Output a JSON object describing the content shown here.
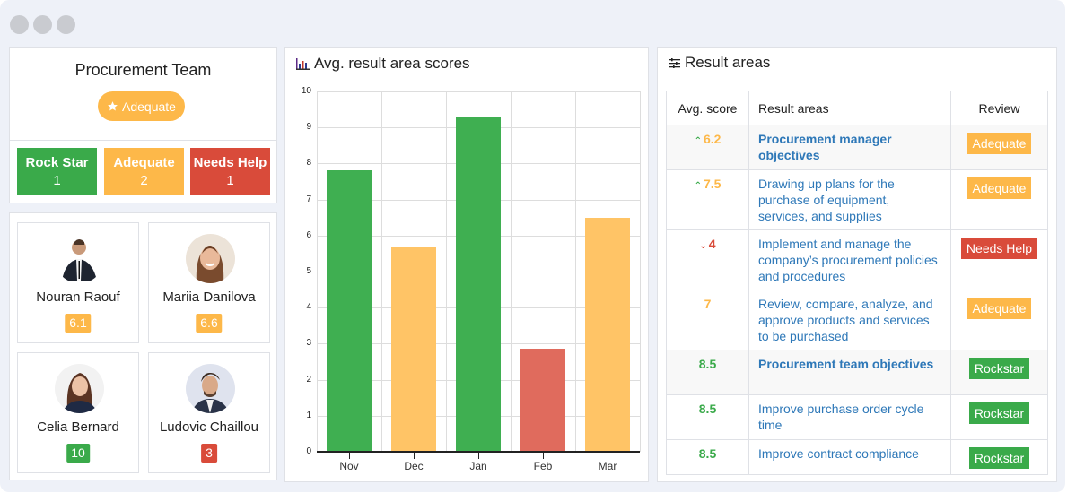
{
  "window": {
    "dots": 3
  },
  "team": {
    "title": "Procurement Team",
    "badge": {
      "icon": "star-icon",
      "label": "Adequate"
    },
    "stats": [
      {
        "label": "Rock Star",
        "count": "1",
        "color": "#3aaa4a"
      },
      {
        "label": "Adequate",
        "count": "2",
        "color": "#fdb849"
      },
      {
        "label": "Needs Help",
        "count": "1",
        "color": "#d94b3a"
      }
    ]
  },
  "members": [
    {
      "name": "Nouran Raouf",
      "score": "6.1",
      "status": "orange"
    },
    {
      "name": "Mariia Danilova",
      "score": "6.6",
      "status": "orange"
    },
    {
      "name": "Celia Bernard",
      "score": "10",
      "status": "green"
    },
    {
      "name": "Ludovic Chaillou",
      "score": "3",
      "status": "red"
    }
  ],
  "chart_panel": {
    "icon": "bar-chart-icon",
    "title": "Avg. result area scores"
  },
  "chart_data": {
    "type": "bar",
    "title": "Avg. result area scores",
    "categories": [
      "Nov",
      "Dec",
      "Jan",
      "Feb",
      "Mar"
    ],
    "values": [
      7.8,
      5.7,
      9.3,
      2.85,
      6.5
    ],
    "colors": [
      "#3faf51",
      "#ffc466",
      "#3faf51",
      "#e06b5d",
      "#ffc466"
    ],
    "xlabel": "",
    "ylabel": "",
    "ylim": [
      0,
      10
    ],
    "yticks": [
      "0",
      "1",
      "2",
      "3",
      "4",
      "5",
      "6",
      "7",
      "8",
      "9",
      "10"
    ],
    "grid": true,
    "legend": null
  },
  "results_panel": {
    "icon": "sliders-icon",
    "title": "Result areas",
    "columns": [
      "Avg. score",
      "Result areas",
      "Review"
    ],
    "rows": [
      {
        "trend": "up",
        "score": "6.2",
        "score_color": "orange",
        "area": "Procurement manager objectives",
        "group": true,
        "review": "Adequate",
        "review_color": "orange"
      },
      {
        "trend": "up",
        "score": "7.5",
        "score_color": "orange",
        "area": "Drawing up plans for the purchase of equipment, services, and supplies",
        "group": false,
        "review": "Adequate",
        "review_color": "orange"
      },
      {
        "trend": "down",
        "score": "4",
        "score_color": "red",
        "area": "Implement and manage the company’s procurement policies and procedures",
        "group": false,
        "review": "Needs Help",
        "review_color": "red"
      },
      {
        "trend": "",
        "score": "7",
        "score_color": "orange",
        "area": "Review, compare, analyze, and approve products and services to be purchased",
        "group": false,
        "review": "Adequate",
        "review_color": "orange"
      },
      {
        "trend": "",
        "score": "8.5",
        "score_color": "green",
        "area": "Procurement team objectives",
        "group": true,
        "review": "Rockstar",
        "review_color": "green"
      },
      {
        "trend": "",
        "score": "8.5",
        "score_color": "green",
        "area": "Improve purchase order cycle time",
        "group": false,
        "review": "Rockstar",
        "review_color": "green"
      },
      {
        "trend": "",
        "score": "8.5",
        "score_color": "green",
        "area": "Improve contract compliance",
        "group": false,
        "review": "Rockstar",
        "review_color": "green"
      }
    ]
  }
}
